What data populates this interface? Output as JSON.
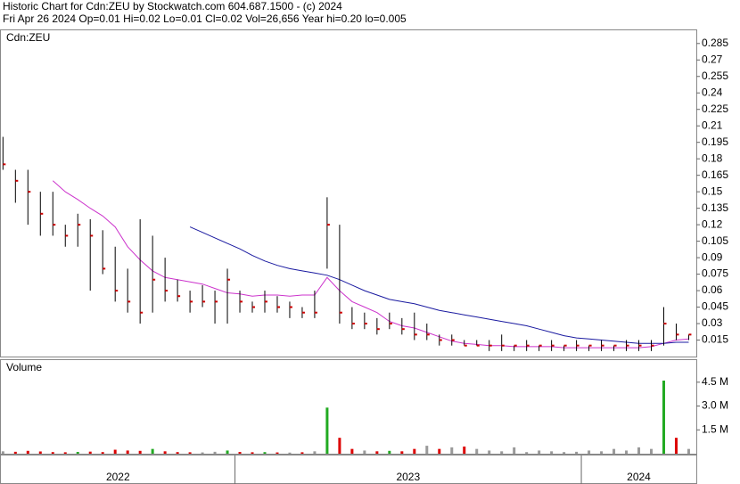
{
  "header": {
    "title": "Historic Chart for Cdn:ZEU by Stockwatch.com 604.687.1500 - (c) 2024",
    "quote": "Fri Apr 26 2024  Op=0.01  Hi=0.02  Lo=0.01  Cl=0.02  Vol=26,656  Year hi=0.20  lo=0.005"
  },
  "chart_data": {
    "type": "ohlc",
    "label": "Cdn:ZEU",
    "volume_label": "Volume",
    "x": [
      2022.33,
      2022.366,
      2022.402,
      2022.438,
      2022.474,
      2022.51,
      2022.546,
      2022.582,
      2022.618,
      2022.654,
      2022.69,
      2022.726,
      2022.762,
      2022.798,
      2022.834,
      2022.87,
      2022.906,
      2022.942,
      2022.978,
      2023.014,
      2023.05,
      2023.086,
      2023.122,
      2023.158,
      2023.194,
      2023.23,
      2023.266,
      2023.302,
      2023.338,
      2023.374,
      2023.41,
      2023.446,
      2023.482,
      2023.518,
      2023.554,
      2023.59,
      2023.626,
      2023.662,
      2023.698,
      2023.734,
      2023.77,
      2023.806,
      2023.842,
      2023.878,
      2023.914,
      2023.95,
      2023.986,
      2024.022,
      2024.058,
      2024.094,
      2024.13,
      2024.166,
      2024.202,
      2024.238,
      2024.274,
      2024.31
    ],
    "high": [
      0.2,
      0.17,
      0.17,
      0.15,
      0.15,
      0.12,
      0.13,
      0.125,
      0.115,
      0.1,
      0.08,
      0.125,
      0.11,
      0.09,
      0.07,
      0.06,
      0.065,
      0.06,
      0.08,
      0.06,
      0.05,
      0.06,
      0.055,
      0.05,
      0.045,
      0.06,
      0.145,
      0.12,
      0.045,
      0.04,
      0.035,
      0.04,
      0.035,
      0.04,
      0.03,
      0.02,
      0.02,
      0.015,
      0.015,
      0.015,
      0.02,
      0.01,
      0.015,
      0.01,
      0.015,
      0.01,
      0.015,
      0.01,
      0.015,
      0.01,
      0.015,
      0.015,
      0.015,
      0.045,
      0.03,
      0.02
    ],
    "low": [
      0.17,
      0.14,
      0.12,
      0.11,
      0.11,
      0.1,
      0.1,
      0.06,
      0.075,
      0.05,
      0.04,
      0.03,
      0.04,
      0.05,
      0.05,
      0.04,
      0.045,
      0.03,
      0.03,
      0.04,
      0.04,
      0.04,
      0.04,
      0.035,
      0.035,
      0.035,
      0.08,
      0.03,
      0.025,
      0.025,
      0.02,
      0.025,
      0.02,
      0.015,
      0.015,
      0.01,
      0.01,
      0.01,
      0.01,
      0.005,
      0.005,
      0.005,
      0.005,
      0.005,
      0.005,
      0.005,
      0.005,
      0.005,
      0.005,
      0.005,
      0.005,
      0.005,
      0.005,
      0.01,
      0.015,
      0.015
    ],
    "close": [
      0.175,
      0.16,
      0.15,
      0.13,
      0.12,
      0.11,
      0.12,
      0.11,
      0.08,
      0.06,
      0.05,
      0.04,
      0.07,
      0.06,
      0.055,
      0.05,
      0.05,
      0.05,
      0.07,
      0.05,
      0.045,
      0.05,
      0.045,
      0.045,
      0.04,
      0.04,
      0.12,
      0.04,
      0.03,
      0.03,
      0.025,
      0.03,
      0.025,
      0.02,
      0.02,
      0.015,
      0.015,
      0.01,
      0.01,
      0.01,
      0.01,
      0.01,
      0.01,
      0.01,
      0.01,
      0.01,
      0.01,
      0.01,
      0.01,
      0.01,
      0.01,
      0.01,
      0.01,
      0.03,
      0.02,
      0.02
    ],
    "volume": [
      150000,
      120000,
      180000,
      140000,
      100000,
      90000,
      110000,
      130000,
      100000,
      250000,
      200000,
      180000,
      300000,
      150000,
      100000,
      90000,
      80000,
      120000,
      200000,
      110000,
      90000,
      100000,
      80000,
      70000,
      90000,
      150000,
      2900000,
      1000000,
      300000,
      200000,
      150000,
      180000,
      150000,
      300000,
      500000,
      300000,
      400000,
      450000,
      300000,
      200000,
      150000,
      400000,
      100000,
      200000,
      150000,
      100000,
      120000,
      200000,
      150000,
      300000,
      200000,
      400000,
      300000,
      4600000,
      1000000,
      300000
    ],
    "averages": [
      {
        "color": "#cc33cc",
        "values": [
          null,
          null,
          null,
          null,
          0.16,
          0.15,
          0.143,
          0.135,
          0.128,
          0.118,
          0.1,
          0.088,
          0.078,
          0.072,
          0.07,
          0.068,
          0.066,
          0.062,
          0.058,
          0.057,
          0.055,
          0.056,
          0.056,
          0.055,
          0.056,
          0.056,
          0.072,
          0.06,
          0.05,
          0.045,
          0.04,
          0.032,
          0.028,
          0.026,
          0.022,
          0.018,
          0.014,
          0.012,
          0.011,
          0.01,
          0.01,
          0.009,
          0.009,
          0.009,
          0.009,
          0.008,
          0.008,
          0.008,
          0.008,
          0.008,
          0.008,
          0.008,
          0.009,
          0.012,
          0.015,
          0.016
        ]
      },
      {
        "color": "#1a1aa0",
        "values": [
          null,
          null,
          null,
          null,
          null,
          null,
          null,
          null,
          null,
          null,
          null,
          null,
          null,
          null,
          null,
          0.118,
          0.113,
          0.108,
          0.103,
          0.098,
          0.092,
          0.087,
          0.083,
          0.08,
          0.078,
          0.076,
          0.074,
          0.07,
          0.065,
          0.06,
          0.056,
          0.052,
          0.05,
          0.048,
          0.045,
          0.042,
          0.04,
          0.038,
          0.036,
          0.034,
          0.032,
          0.03,
          0.028,
          0.025,
          0.022,
          0.019,
          0.017,
          0.016,
          0.015,
          0.014,
          0.013,
          0.012,
          0.012,
          0.012,
          0.013,
          0.013
        ]
      }
    ],
    "bar_color": "#000000",
    "close_color": "#cc0000",
    "volume_colors": {
      "up": "#22aa22",
      "down": "#dd0000",
      "flat": "#999999"
    },
    "xlim": [
      2022.324,
      2024.332
    ],
    "xticks": [
      2022,
      2023,
      2024
    ],
    "ylim": [
      0,
      0.297
    ],
    "yticks": [
      0.015,
      0.03,
      0.045,
      0.06,
      0.075,
      0.09,
      0.105,
      0.12,
      0.135,
      0.15,
      0.165,
      0.18,
      0.195,
      0.21,
      0.225,
      0.24,
      0.255,
      0.27,
      0.285
    ],
    "volume_ylim": [
      0,
      5890000
    ],
    "volume_yticks": [
      {
        "value": 1500000,
        "label": "1.5 M"
      },
      {
        "value": 3000000,
        "label": "3.0 M"
      },
      {
        "value": 4500000,
        "label": "4.5 M"
      }
    ]
  }
}
